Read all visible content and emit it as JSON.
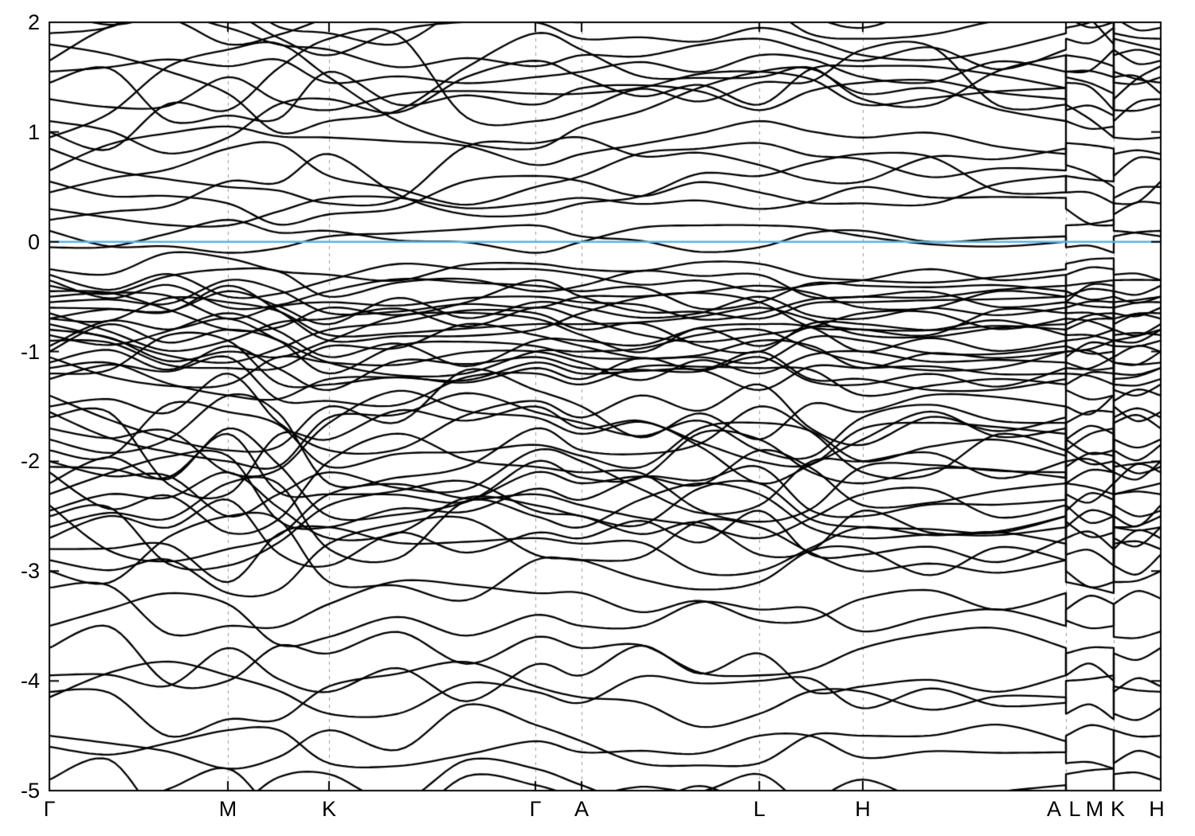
{
  "figure": {
    "background": "#ffffff",
    "description": "Electronic band structure plot along hexagonal Brillouin-zone path with Fermi level line at 0"
  },
  "chart_data": {
    "type": "line",
    "subtype": "band-structure",
    "title": "",
    "xlabel": "",
    "ylabel": "",
    "ylim": [
      -5,
      2
    ],
    "grid": "dashed-vertical-at-symmetry-points",
    "legend": "none",
    "yticks": {
      "values": [
        2,
        1,
        0,
        -1,
        -2,
        -3,
        -4,
        -5
      ],
      "labels": [
        "2",
        "1",
        "0",
        "-1",
        "-2",
        "-3",
        "-4",
        "-5"
      ]
    },
    "xticks": [
      {
        "label": "Γ",
        "f": 0.0,
        "dx": 0
      },
      {
        "label": "M",
        "f": 0.1606,
        "dx": 0
      },
      {
        "label": "K",
        "f": 0.2516,
        "dx": 0
      },
      {
        "label": "Γ",
        "f": 0.4373,
        "dx": 0
      },
      {
        "label": "A",
        "f": 0.4789,
        "dx": 0
      },
      {
        "label": "L",
        "f": 0.6388,
        "dx": 0
      },
      {
        "label": "H",
        "f": 0.7319,
        "dx": 0
      },
      {
        "label": "A",
        "f": 0.9147,
        "dx": -15
      },
      {
        "label": "L",
        "f": 0.9147,
        "dx": 11
      },
      {
        "label": "M",
        "f": 0.9577,
        "dx": -24
      },
      {
        "label": "K",
        "f": 0.9577,
        "dx": 5
      },
      {
        "label": "H",
        "f": 1.0,
        "dx": -5
      }
    ],
    "gridlines_f": [
      0.1606,
      0.2516,
      0.4373,
      0.4789,
      0.6388,
      0.7319,
      0.9147,
      0.9577
    ],
    "fermi_level": 0,
    "colors": {
      "band": "#000000",
      "fermi": "#56B4E9",
      "grid": "#9a9a9a",
      "axis": "#000000",
      "background": "#ffffff"
    },
    "path": {
      "main_f": [
        0.0,
        0.1606,
        0.2516,
        0.4373,
        0.4789,
        0.6388,
        0.7319,
        0.9147
      ],
      "lm_f": [
        0.9147,
        0.9577
      ],
      "kh_f": [
        0.9577,
        1.0
      ],
      "lm_point_indices": [
        5,
        1
      ],
      "kh_point_indices": [
        2,
        6
      ]
    },
    "band_point_order": [
      "Γ",
      "M",
      "K",
      "Γ",
      "A",
      "L",
      "H",
      "A",
      "wiggle_amp"
    ],
    "wiggle_seed": 7,
    "bands": [
      [
        0.95,
        1.75,
        1.5,
        0.85,
        1.05,
        1.55,
        1.35,
        1.1,
        0.25
      ],
      [
        1.0,
        1.2,
        1.85,
        1.1,
        1.2,
        1.45,
        1.75,
        1.25,
        0.3
      ],
      [
        1.1,
        0.95,
        1.3,
        1.65,
        1.5,
        1.25,
        1.6,
        1.4,
        0.25
      ],
      [
        1.8,
        1.35,
        1.1,
        1.9,
        1.75,
        1.5,
        1.3,
        1.7,
        0.3
      ],
      [
        1.9,
        2.1,
        1.7,
        2.0,
        1.85,
        1.95,
        1.7,
        1.9,
        0.2
      ],
      [
        2.1,
        1.8,
        2.05,
        2.3,
        2.1,
        2.2,
        1.95,
        2.15,
        0.2
      ],
      [
        0.45,
        0.85,
        0.6,
        0.5,
        0.6,
        0.9,
        0.75,
        0.65,
        0.2
      ],
      [
        0.2,
        0.55,
        0.8,
        0.25,
        0.35,
        0.6,
        0.8,
        0.45,
        0.2
      ],
      [
        0.85,
        0.5,
        0.35,
        0.9,
        0.95,
        0.7,
        0.55,
        0.85,
        0.2
      ],
      [
        0.65,
        1.05,
        0.95,
        0.7,
        0.8,
        1.1,
        0.95,
        0.8,
        0.2
      ],
      [
        1.3,
        1.5,
        1.2,
        1.35,
        1.35,
        1.55,
        1.25,
        1.4,
        0.2
      ],
      [
        1.55,
        1.6,
        1.45,
        1.5,
        1.55,
        1.7,
        1.5,
        1.55,
        0.18
      ],
      [
        0.3,
        0.15,
        0.4,
        0.35,
        0.4,
        0.3,
        0.5,
        0.4,
        0.15
      ],
      [
        2.3,
        2.0,
        2.2,
        2.15,
        2.25,
        2.05,
        2.3,
        2.2,
        0.2
      ],
      [
        1.65,
        1.95,
        1.75,
        1.6,
        1.7,
        1.85,
        1.65,
        1.75,
        0.22
      ],
      [
        0.55,
        0.35,
        0.25,
        0.6,
        0.55,
        0.45,
        0.35,
        0.6,
        0.15
      ],
      [
        1.45,
        1.15,
        1.55,
        1.25,
        1.4,
        1.2,
        1.45,
        1.3,
        0.25
      ],
      [
        2.0,
        2.25,
        1.9,
        2.05,
        2.0,
        2.15,
        1.85,
        2.05,
        0.2
      ],
      [
        0.1,
        -0.1,
        0.05,
        0.15,
        0.05,
        -0.05,
        0.1,
        0.05,
        0.12
      ],
      [
        -0.05,
        0.2,
        0.1,
        -0.1,
        0.0,
        0.15,
        0.05,
        0.0,
        0.12
      ],
      [
        -0.3,
        -0.5,
        -0.35,
        -0.25,
        -0.3,
        -0.45,
        -0.35,
        -0.3,
        0.15
      ],
      [
        -0.4,
        -0.25,
        -0.5,
        -0.45,
        -0.4,
        -0.3,
        -0.5,
        -0.4,
        0.15
      ],
      [
        -0.5,
        -0.7,
        -0.55,
        -0.5,
        -0.55,
        -0.65,
        -0.5,
        -0.55,
        0.15
      ],
      [
        -0.6,
        -0.45,
        -0.75,
        -0.55,
        -0.6,
        -0.5,
        -0.7,
        -0.6,
        0.18
      ],
      [
        -0.65,
        -0.9,
        -0.7,
        -0.6,
        -0.7,
        -0.85,
        -0.65,
        -0.7,
        0.18
      ],
      [
        -0.7,
        -0.55,
        -0.85,
        -0.75,
        -0.75,
        -0.6,
        -0.85,
        -0.75,
        0.18
      ],
      [
        -0.8,
        -1.0,
        -0.9,
        -0.7,
        -0.85,
        -0.95,
        -0.8,
        -0.85,
        0.2
      ],
      [
        -0.85,
        -0.65,
        -1.05,
        -0.9,
        -0.9,
        -0.75,
        -1.0,
        -0.9,
        0.2
      ],
      [
        -0.9,
        -1.15,
        -0.95,
        -0.85,
        -0.95,
        -1.1,
        -0.9,
        -0.95,
        0.2
      ],
      [
        -1.0,
        -0.8,
        -1.2,
        -0.95,
        -1.05,
        -0.9,
        -1.15,
        -1.0,
        0.2
      ],
      [
        -1.05,
        -1.3,
        -1.1,
        -1.0,
        -1.1,
        -1.2,
        -1.0,
        -1.1,
        0.2
      ],
      [
        -1.1,
        -0.95,
        -1.35,
        -1.05,
        -1.15,
        -1.05,
        -1.3,
        -1.15,
        0.2
      ],
      [
        -0.35,
        -0.6,
        -0.45,
        -0.4,
        -0.45,
        -0.55,
        -0.4,
        -0.45,
        0.15
      ],
      [
        -0.55,
        -0.35,
        -0.65,
        -0.6,
        -0.5,
        -0.4,
        -0.6,
        -0.5,
        0.15
      ],
      [
        -0.75,
        -1.1,
        -0.8,
        -0.65,
        -0.8,
        -1.0,
        -0.75,
        -0.8,
        0.2
      ],
      [
        -0.95,
        -0.7,
        -1.1,
        -1.0,
        -1.0,
        -0.8,
        -1.1,
        -1.0,
        0.2
      ],
      [
        -0.45,
        -0.8,
        -0.6,
        -0.35,
        -0.5,
        -0.7,
        -0.55,
        -0.5,
        0.2
      ],
      [
        -0.7,
        -0.4,
        -0.9,
        -0.8,
        -0.65,
        -0.55,
        -0.8,
        -0.65,
        0.2
      ],
      [
        -1.15,
        -1.4,
        -1.25,
        -1.1,
        -1.2,
        -1.35,
        -1.15,
        -1.2,
        0.2
      ],
      [
        -1.25,
        -1.05,
        -1.45,
        -1.2,
        -1.3,
        -1.15,
        -1.4,
        -1.3,
        0.2
      ],
      [
        -0.25,
        -0.15,
        -0.3,
        -0.2,
        -0.25,
        -0.2,
        -0.35,
        -0.25,
        0.1
      ],
      [
        -1.2,
        -0.9,
        -1.3,
        -1.15,
        -1.25,
        -1.0,
        -1.25,
        -1.25,
        0.2
      ],
      [
        -1.6,
        -2.3,
        -1.8,
        -1.5,
        -1.7,
        -2.2,
        -1.8,
        -1.7,
        0.35
      ],
      [
        -1.8,
        -1.4,
        -2.2,
        -1.7,
        -1.9,
        -1.5,
        -2.1,
        -1.9,
        0.35
      ],
      [
        -2.0,
        -2.5,
        -2.1,
        -1.9,
        -2.0,
        -2.4,
        -2.0,
        -2.0,
        0.3
      ],
      [
        -2.2,
        -1.7,
        -2.5,
        -2.1,
        -2.2,
        -1.9,
        -2.4,
        -2.2,
        0.35
      ],
      [
        -2.4,
        -2.8,
        -2.3,
        -2.3,
        -2.4,
        -2.7,
        -2.3,
        -2.4,
        0.3
      ],
      [
        -2.6,
        -2.2,
        -2.8,
        -2.5,
        -2.6,
        -2.3,
        -2.7,
        -2.6,
        0.3
      ],
      [
        -2.8,
        -3.1,
        -2.6,
        -2.7,
        -2.75,
        -3.0,
        -2.6,
        -2.75,
        0.3
      ],
      [
        -3.0,
        -2.5,
        -3.1,
        -2.9,
        -2.9,
        -2.6,
        -3.0,
        -2.9,
        0.3
      ],
      [
        -1.4,
        -1.9,
        -1.5,
        -1.35,
        -1.5,
        -1.8,
        -1.55,
        -1.5,
        0.3
      ],
      [
        -1.5,
        -1.2,
        -1.9,
        -1.45,
        -1.6,
        -1.3,
        -1.85,
        -1.6,
        0.3
      ],
      [
        -2.1,
        -2.65,
        -2.0,
        -2.05,
        -2.1,
        -2.55,
        -2.05,
        -2.1,
        0.3
      ],
      [
        -2.3,
        -1.95,
        -2.6,
        -2.25,
        -2.35,
        -2.05,
        -2.5,
        -2.35,
        0.3
      ],
      [
        -2.5,
        -2.95,
        -2.4,
        -2.45,
        -2.5,
        -2.85,
        -2.45,
        -2.5,
        0.3
      ],
      [
        -2.7,
        -2.35,
        -2.95,
        -2.65,
        -2.7,
        -2.45,
        -2.85,
        -2.7,
        0.3
      ],
      [
        -1.7,
        -2.1,
        -1.65,
        -1.6,
        -1.75,
        -2.0,
        -1.7,
        -1.75,
        0.3
      ],
      [
        -1.9,
        -1.55,
        -2.05,
        -1.85,
        -1.95,
        -1.65,
        -2.0,
        -1.95,
        0.3
      ],
      [
        -1.55,
        -2.0,
        -1.6,
        -1.55,
        -1.65,
        -1.9,
        -1.6,
        -1.65,
        0.3
      ],
      [
        -2.05,
        -1.75,
        -2.3,
        -2.0,
        -2.15,
        -1.8,
        -2.2,
        -2.15,
        0.3
      ],
      [
        -2.45,
        -2.1,
        -2.7,
        -2.4,
        -2.5,
        -2.2,
        -2.6,
        -2.5,
        0.3
      ],
      [
        -2.9,
        -3.2,
        -2.75,
        -2.85,
        -2.9,
        -3.1,
        -2.8,
        -2.9,
        0.3
      ],
      [
        -3.15,
        -3.5,
        -3.3,
        -3.2,
        -3.2,
        -3.45,
        -3.25,
        -3.2,
        0.25
      ],
      [
        -3.5,
        -3.3,
        -3.6,
        -3.4,
        -3.5,
        -3.35,
        -3.55,
        -3.5,
        0.25
      ],
      [
        -3.7,
        -4.0,
        -3.75,
        -3.6,
        -3.7,
        -3.95,
        -3.7,
        -3.7,
        0.3
      ],
      [
        -3.95,
        -3.7,
        -4.1,
        -3.85,
        -3.95,
        -3.75,
        -4.05,
        -3.95,
        0.3
      ],
      [
        -4.1,
        -4.35,
        -4.05,
        -4.05,
        -4.15,
        -4.3,
        -4.1,
        -4.15,
        0.25
      ],
      [
        -4.15,
        -3.95,
        -4.3,
        -4.1,
        -4.2,
        -4.0,
        -4.25,
        -4.2,
        0.25
      ],
      [
        -4.5,
        -4.8,
        -4.45,
        -4.4,
        -4.55,
        -4.75,
        -4.5,
        -4.55,
        0.25
      ],
      [
        -4.6,
        -4.45,
        -4.75,
        -4.55,
        -4.65,
        -4.5,
        -4.7,
        -4.65,
        0.25
      ],
      [
        -4.9,
        -5.2,
        -4.85,
        -4.8,
        -4.95,
        -5.15,
        -4.9,
        -4.95,
        0.3
      ],
      [
        -5.0,
        -4.8,
        -5.3,
        -4.95,
        -5.05,
        -4.85,
        -5.25,
        -5.05,
        0.3
      ]
    ]
  }
}
